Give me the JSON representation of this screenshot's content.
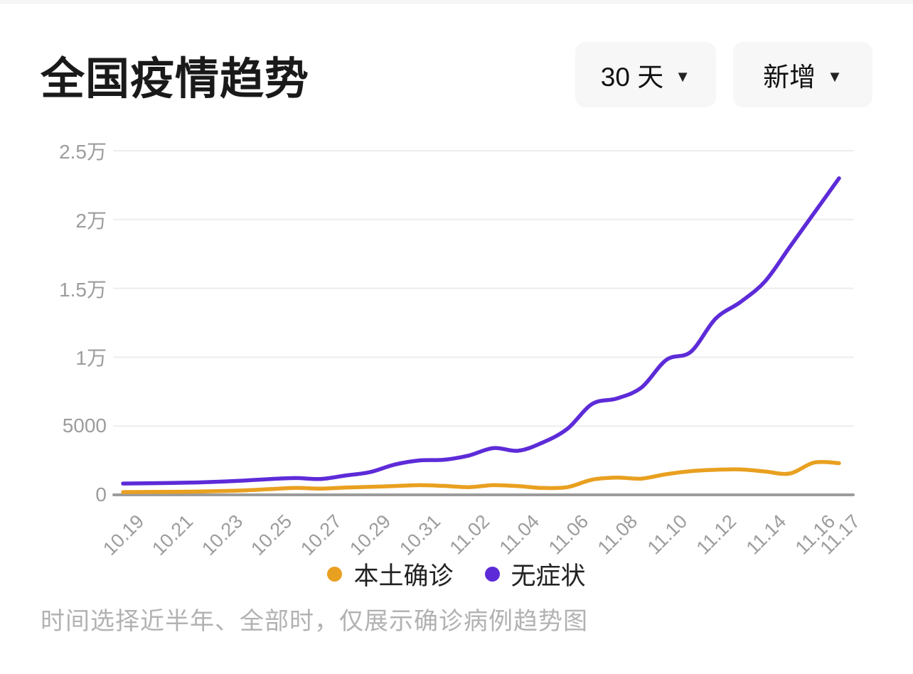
{
  "header": {
    "title": "全国疫情趋势",
    "range_dropdown": {
      "label": "30 天",
      "caret": "▼"
    },
    "metric_dropdown": {
      "label": "新增",
      "caret": "▼"
    }
  },
  "legend": {
    "items": [
      {
        "label": "本土确诊",
        "color": "#E9A020"
      },
      {
        "label": "无症状",
        "color": "#5D2BD8"
      }
    ]
  },
  "footnote": "时间选择近半年、全部时，仅展示确诊病例趋势图",
  "colors": {
    "grid": "#ededed",
    "axis": "#9c9c9c",
    "tick_text": "#9c9c9c",
    "confirmed_line": "#E9A020",
    "asymptomatic_line": "#5D2BD8"
  },
  "chart_data": {
    "type": "line",
    "title": "全国疫情趋势",
    "xlabel": "",
    "ylabel": "",
    "ylim": [
      0,
      25000
    ],
    "grid": true,
    "legend_position": "bottom",
    "y_ticks": {
      "values": [
        25000,
        20000,
        15000,
        10000,
        5000,
        0
      ],
      "labels": [
        "2.5万",
        "2万",
        "1.5万",
        "1万",
        "5000",
        "0"
      ]
    },
    "x": [
      "10.19",
      "10.20",
      "10.21",
      "10.22",
      "10.23",
      "10.24",
      "10.25",
      "10.26",
      "10.27",
      "10.28",
      "10.29",
      "10.30",
      "10.31",
      "11.01",
      "11.02",
      "11.03",
      "11.04",
      "11.05",
      "11.06",
      "11.07",
      "11.08",
      "11.09",
      "11.10",
      "11.11",
      "11.12",
      "11.13",
      "11.14",
      "11.15",
      "11.16",
      "11.17"
    ],
    "x_tick_indices": [
      0,
      2,
      4,
      6,
      8,
      10,
      12,
      14,
      16,
      18,
      20,
      22,
      24,
      26,
      28,
      29
    ],
    "series": [
      {
        "name": "本土确诊",
        "color": "#E9A020",
        "values": [
          200,
          210,
          220,
          240,
          280,
          330,
          420,
          500,
          450,
          530,
          580,
          640,
          700,
          650,
          560,
          700,
          630,
          500,
          560,
          1100,
          1250,
          1180,
          1500,
          1720,
          1820,
          1850,
          1700,
          1550,
          2350,
          2300
        ]
      },
      {
        "name": "无症状",
        "color": "#5D2BD8",
        "values": [
          820,
          840,
          870,
          900,
          960,
          1050,
          1150,
          1220,
          1150,
          1400,
          1650,
          2200,
          2500,
          2550,
          2850,
          3400,
          3200,
          3800,
          4800,
          6600,
          7000,
          7800,
          9800,
          10400,
          12800,
          14000,
          15500,
          18000,
          20500,
          23000
        ]
      }
    ]
  }
}
